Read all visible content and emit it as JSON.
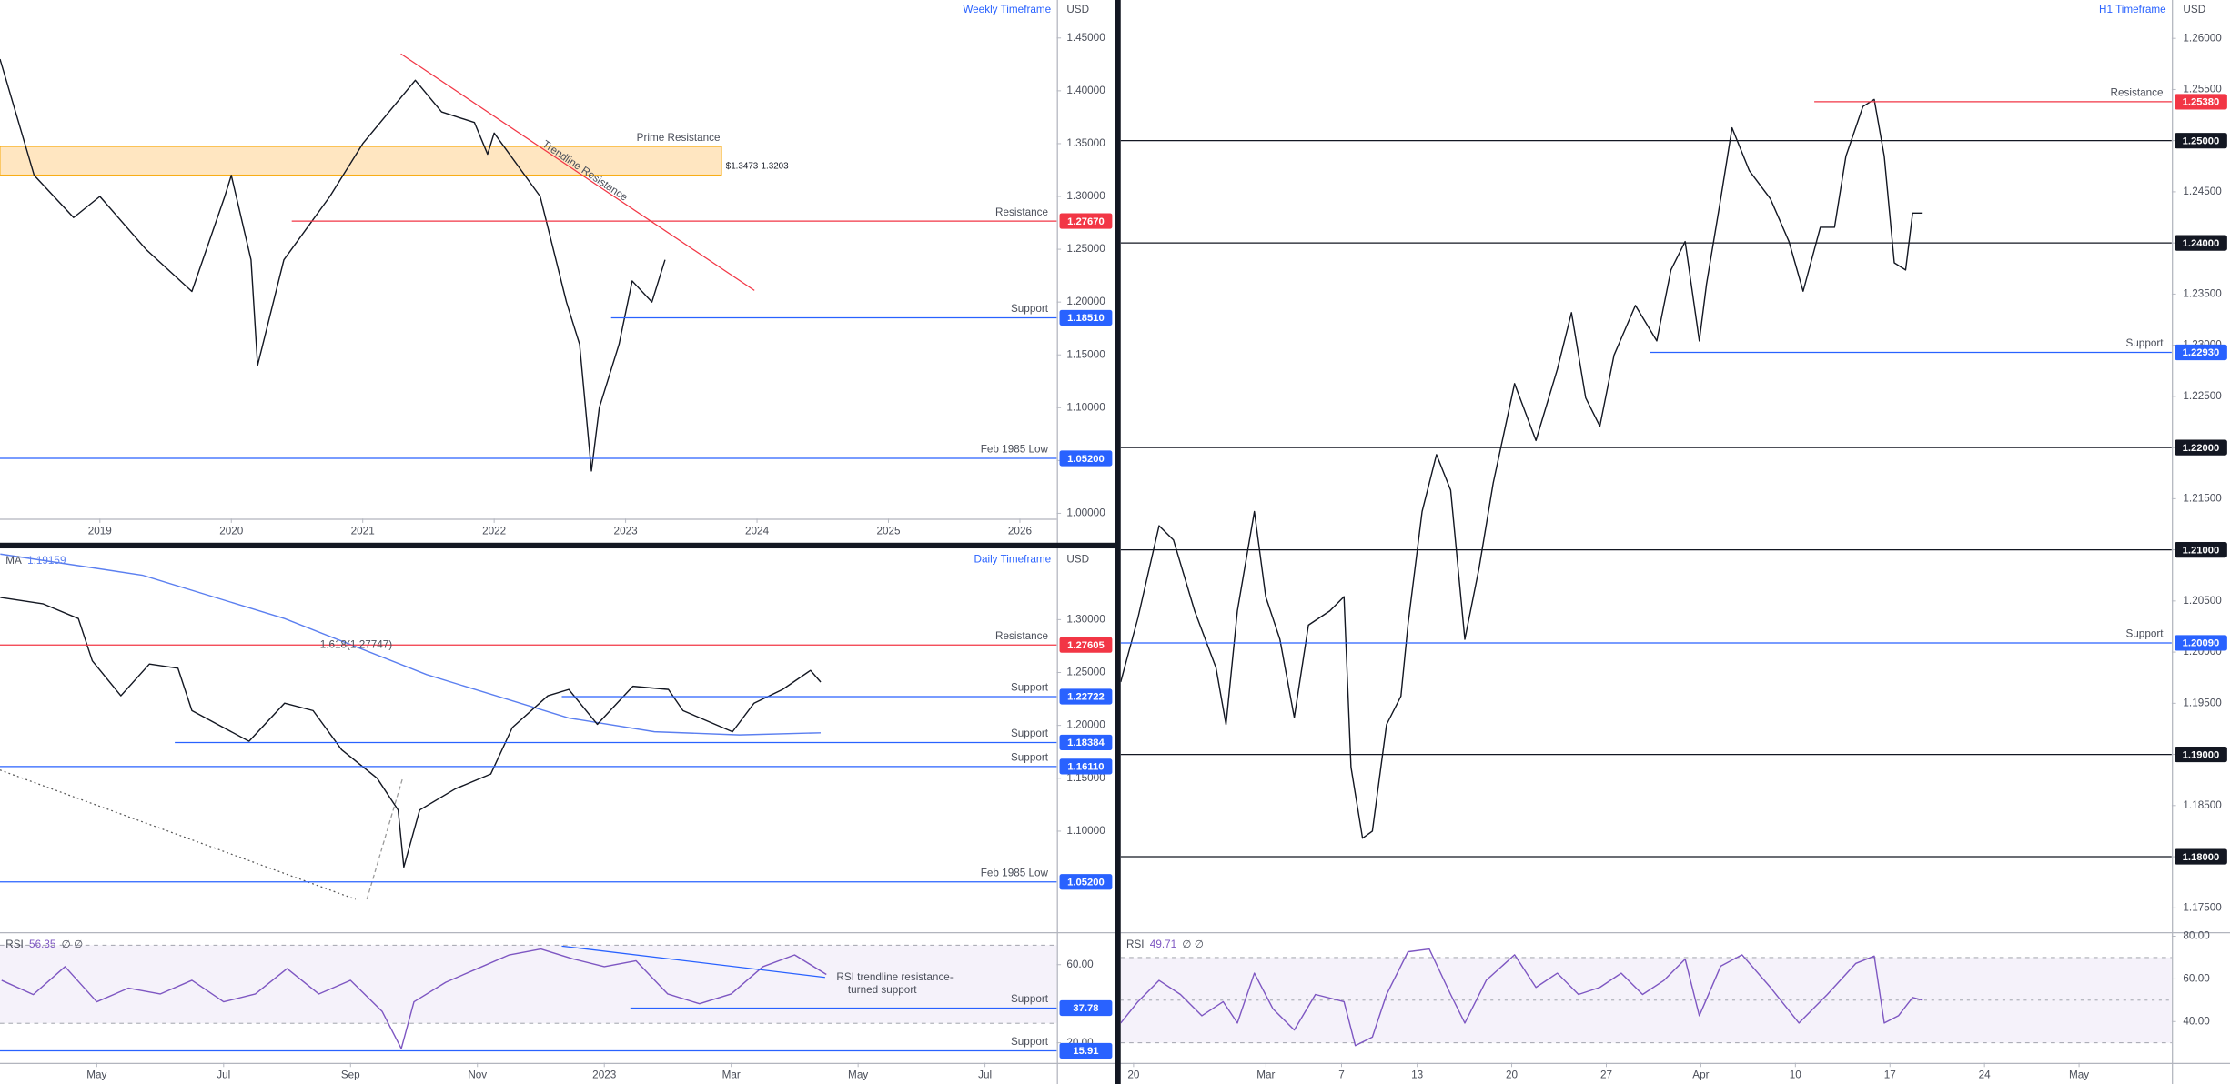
{
  "chart_data": [
    {
      "type": "line",
      "title": "Weekly Timeframe",
      "currency": "USD",
      "color": "#131722",
      "xlim": [
        2018.24,
        2026.28
      ],
      "xticks": [
        2019,
        2020,
        2021,
        2022,
        2023,
        2024,
        2025,
        2026
      ],
      "ylim": [
        0.995,
        1.486
      ],
      "yticks": [
        {
          "value": 1.0,
          "label": "1.00000"
        },
        {
          "value": 1.05,
          "label": "1.05000"
        },
        {
          "value": 1.1,
          "label": "1.10000"
        },
        {
          "value": 1.15,
          "label": "1.15000"
        },
        {
          "value": 1.2,
          "label": "1.20000"
        },
        {
          "value": 1.25,
          "label": "1.25000"
        },
        {
          "value": 1.3,
          "label": "1.30000"
        },
        {
          "value": 1.35,
          "label": "1.35000"
        },
        {
          "value": 1.4,
          "label": "1.40000"
        },
        {
          "value": 1.45,
          "label": "1.45000"
        }
      ],
      "x": [
        2018.24,
        2018.5,
        2018.8,
        2019.0,
        2019.35,
        2019.7,
        2019.95,
        2020.0,
        2020.15,
        2020.2,
        2020.4,
        2020.75,
        2021.0,
        2021.2,
        2021.4,
        2021.6,
        2021.85,
        2021.95,
        2022.0,
        2022.35,
        2022.45,
        2022.55,
        2022.65,
        2022.74,
        2022.8,
        2022.95,
        2023.05,
        2023.2,
        2023.3
      ],
      "values": [
        1.43,
        1.32,
        1.28,
        1.3,
        1.25,
        1.21,
        1.3,
        1.32,
        1.24,
        1.14,
        1.24,
        1.3,
        1.35,
        1.38,
        1.41,
        1.38,
        1.37,
        1.34,
        1.36,
        1.3,
        1.25,
        1.2,
        1.16,
        1.04,
        1.1,
        1.16,
        1.22,
        1.2,
        1.24
      ],
      "zones": [
        {
          "label": "Prime Resistance",
          "range_label": "$1.3473-1.3203",
          "values": [
            1.3473,
            1.3203
          ],
          "x": [
            2018.24,
            2023.73
          ],
          "color": "#f7a600"
        }
      ],
      "trendlines": [
        {
          "label": "Trendline Resistance",
          "x": [
            2021.29,
            2023.98
          ],
          "values": [
            1.435,
            1.211
          ],
          "color": "#f23645"
        }
      ],
      "levels": [
        {
          "label": "Resistance",
          "value": 1.2767,
          "value_label": "1.27670",
          "color": "#f23645",
          "x_start": 2020.46
        },
        {
          "label": "Support",
          "value": 1.1851,
          "value_label": "1.18510",
          "color": "#2962ff",
          "x_start": 2022.89
        },
        {
          "label": "Feb 1985 Low",
          "value": 1.052,
          "value_label": "1.05200",
          "color": "#2962ff"
        }
      ]
    },
    {
      "type": "line",
      "title": "Daily Timeframe",
      "currency": "USD",
      "color": "#131722",
      "xlim": [
        2.475,
        19.13
      ],
      "ylim": [
        1.006,
        1.366
      ],
      "yticks": [
        {
          "value": 1.1,
          "label": "1.10000"
        },
        {
          "value": 1.15,
          "label": "1.15000"
        },
        {
          "value": 1.2,
          "label": "1.20000"
        },
        {
          "value": 1.25,
          "label": "1.25000"
        },
        {
          "value": 1.3,
          "label": "1.30000"
        }
      ],
      "x": [
        2.48,
        3.15,
        3.71,
        3.93,
        4.38,
        4.83,
        5.28,
        5.5,
        6.4,
        6.96,
        7.41,
        7.86,
        8.42,
        8.75,
        8.84,
        9.09,
        9.65,
        10.21,
        10.55,
        11.11,
        11.44,
        11.89,
        12.45,
        13.01,
        13.24,
        14.02,
        14.36,
        14.81,
        15.25,
        15.41
      ],
      "values": [
        1.321,
        1.315,
        1.301,
        1.261,
        1.228,
        1.258,
        1.254,
        1.214,
        1.185,
        1.221,
        1.214,
        1.177,
        1.15,
        1.12,
        1.066,
        1.12,
        1.14,
        1.154,
        1.198,
        1.228,
        1.234,
        1.201,
        1.237,
        1.234,
        1.214,
        1.194,
        1.221,
        1.234,
        1.252,
        1.241
      ],
      "overlays": [
        {
          "name": "MA",
          "value": 1.19159,
          "value_label": "1.19159",
          "color": "#5b7ff0",
          "x": [
            2.48,
            4.72,
            6.96,
            9.2,
            11.44,
            12.79,
            14.13,
            15.41
          ],
          "values": [
            1.362,
            1.342,
            1.301,
            1.248,
            1.207,
            1.194,
            1.191,
            1.193
          ]
        }
      ],
      "levels": [
        {
          "label": "Resistance",
          "value": 1.27605,
          "value_label": "1.27605",
          "color": "#f23645",
          "annotation": "1.618(1.27747)"
        },
        {
          "label": "Support",
          "value": 1.22722,
          "value_label": "1.22722",
          "color": "#2962ff",
          "x_start": 11.33
        },
        {
          "label": "Support",
          "value": 1.18384,
          "value_label": "1.18384",
          "color": "#2962ff",
          "x_start": 5.23
        },
        {
          "label": "Support",
          "value": 1.1611,
          "value_label": "1.16110",
          "color": "#2962ff"
        },
        {
          "label": "Feb 1985 Low",
          "value": 1.052,
          "value_label": "1.05200",
          "color": "#2962ff"
        }
      ]
    },
    {
      "type": "line",
      "color": "#7e57c2",
      "indicator": {
        "name": "RSI",
        "value": 56.35,
        "params": "∅ ∅"
      },
      "xlim": [
        2.475,
        19.13
      ],
      "ylim": [
        9.8,
        76
      ],
      "xticks": [
        {
          "value": 4,
          "label": "May"
        },
        {
          "value": 6,
          "label": "Jul"
        },
        {
          "value": 8,
          "label": "Sep"
        },
        {
          "value": 10,
          "label": "Nov"
        },
        {
          "value": 12,
          "label": "2023"
        },
        {
          "value": 14,
          "label": "Mar"
        },
        {
          "value": 16,
          "label": "May"
        },
        {
          "value": 18,
          "label": "Jul"
        }
      ],
      "yticks": [
        {
          "value": 20,
          "label": "20.00"
        },
        {
          "value": 60,
          "label": "60.00"
        }
      ],
      "bands": [
        30,
        70
      ],
      "x": [
        2.5,
        3,
        3.5,
        4,
        4.5,
        5,
        5.5,
        6,
        6.5,
        7,
        7.5,
        8,
        8.5,
        8.8,
        9,
        9.5,
        10,
        10.5,
        11,
        11.5,
        12,
        12.5,
        13,
        13.5,
        14,
        14.5,
        15,
        15.5
      ],
      "values": [
        52,
        44.7,
        59,
        41,
        48,
        45,
        52,
        41,
        45,
        58,
        45,
        52,
        36,
        17,
        41,
        51,
        58,
        65,
        68,
        63,
        59,
        62,
        45,
        40,
        45,
        59,
        65,
        55
      ],
      "trendlines": [
        {
          "label_lines": [
            "RSI trendline resistance-",
            "turned support"
          ],
          "x": [
            11.33,
            15.48
          ],
          "values": [
            69.5,
            53.5
          ],
          "color": "#2962ff"
        }
      ],
      "levels": [
        {
          "label": "Support",
          "value": 37.78,
          "value_label": "37.78",
          "color": "#2962ff",
          "x_start": 12.41
        },
        {
          "label": "Support",
          "value": 15.91,
          "value_label": "15.91",
          "color": "#2962ff"
        }
      ]
    },
    {
      "type": "line",
      "title": "H1 Timeframe",
      "currency": "USD",
      "color": "#131722",
      "xlim": [
        -0.68,
        54.9
      ],
      "ylim": [
        1.17278,
        1.26375
      ],
      "yticks": [
        {
          "value": 1.175,
          "label": "1.17500"
        },
        {
          "value": 1.18,
          "label": "1.18000"
        },
        {
          "value": 1.185,
          "label": "1.18500"
        },
        {
          "value": 1.19,
          "label": "1.19000"
        },
        {
          "value": 1.195,
          "label": "1.19500"
        },
        {
          "value": 1.2,
          "label": "1.20000"
        },
        {
          "value": 1.205,
          "label": "1.20500"
        },
        {
          "value": 1.21,
          "label": "1.21000"
        },
        {
          "value": 1.215,
          "label": "1.21500"
        },
        {
          "value": 1.22,
          "label": "1.22000"
        },
        {
          "value": 1.225,
          "label": "1.22500"
        },
        {
          "value": 1.23,
          "label": "1.23000"
        },
        {
          "value": 1.235,
          "label": "1.23500"
        },
        {
          "value": 1.24,
          "label": "1.24000"
        },
        {
          "value": 1.245,
          "label": "1.24500"
        },
        {
          "value": 1.25,
          "label": "1.25000"
        },
        {
          "value": 1.255,
          "label": "1.25500"
        },
        {
          "value": 1.26,
          "label": "1.26000"
        }
      ],
      "x": [
        -0.68,
        0.23,
        1.35,
        2.11,
        3.23,
        4.36,
        4.89,
        5.49,
        6.39,
        6.99,
        7.74,
        8.5,
        9.25,
        10.38,
        11.13,
        11.5,
        12.11,
        12.63,
        13.38,
        14.14,
        14.51,
        15.26,
        16.02,
        16.77,
        17.52,
        18.27,
        19.02,
        20.15,
        21.28,
        22.41,
        23.16,
        23.91,
        24.66,
        25.41,
        26.54,
        27.67,
        28.42,
        29.17,
        29.92,
        30.3,
        31.05,
        31.65,
        32.56,
        33.68,
        34.66,
        35.41,
        36.32,
        37.07,
        37.67,
        38.57,
        39.17,
        39.7,
        40.23,
        40.83,
        41.2,
        41.73
      ],
      "values": [
        1.19708,
        1.20333,
        1.21236,
        1.21097,
        1.20403,
        1.19847,
        1.19292,
        1.20403,
        1.21375,
        1.20542,
        1.20125,
        1.19361,
        1.20264,
        1.20403,
        1.20542,
        1.18875,
        1.18181,
        1.1825,
        1.19292,
        1.19569,
        1.20264,
        1.21375,
        1.21931,
        1.21583,
        1.20125,
        1.20819,
        1.21653,
        1.22625,
        1.22069,
        1.22764,
        1.23319,
        1.22486,
        1.22208,
        1.22903,
        1.23389,
        1.23042,
        1.23736,
        1.24014,
        1.23042,
        1.23597,
        1.24431,
        1.25125,
        1.24708,
        1.24431,
        1.24014,
        1.23528,
        1.24153,
        1.24153,
        1.24847,
        1.25333,
        1.25403,
        1.24847,
        1.23806,
        1.23736,
        1.24292,
        1.24292
      ],
      "levels": [
        {
          "label": "Resistance",
          "value": 1.2538,
          "value_label": "1.25380",
          "color": "#f23645",
          "x_start": 36.0
        },
        {
          "value": 1.25,
          "value_label": "1.25000",
          "color": "#131722"
        },
        {
          "value": 1.24,
          "value_label": "1.24000",
          "color": "#131722"
        },
        {
          "label": "Support",
          "value": 1.2293,
          "value_label": "1.22930",
          "color": "#2962ff",
          "x_start": 27.3
        },
        {
          "value": 1.22,
          "value_label": "1.22000",
          "color": "#131722"
        },
        {
          "value": 1.21,
          "value_label": "1.21000",
          "color": "#131722"
        },
        {
          "label": "Support",
          "value": 1.2009,
          "value_label": "1.20090",
          "color": "#2962ff"
        },
        {
          "value": 1.19,
          "value_label": "1.19000",
          "color": "#131722"
        },
        {
          "value": 1.18,
          "value_label": "1.18000",
          "color": "#131722"
        }
      ]
    },
    {
      "type": "line",
      "color": "#7e57c2",
      "indicator": {
        "name": "RSI",
        "value": 49.71,
        "params": "∅ ∅"
      },
      "xlim": [
        -0.68,
        54.9
      ],
      "ylim": [
        20.67,
        81.33
      ],
      "xticks": [
        {
          "value": 0,
          "label": "20"
        },
        {
          "value": 7,
          "label": "Mar"
        },
        {
          "value": 11,
          "label": "7"
        },
        {
          "value": 15,
          "label": "13"
        },
        {
          "value": 20,
          "label": "20"
        },
        {
          "value": 25,
          "label": "27"
        },
        {
          "value": 30,
          "label": "Apr"
        },
        {
          "value": 35,
          "label": "10"
        },
        {
          "value": 40,
          "label": "17"
        },
        {
          "value": 45,
          "label": "24"
        },
        {
          "value": 50,
          "label": "May"
        }
      ],
      "yticks": [
        {
          "value": 40,
          "label": "40.00"
        },
        {
          "value": 60,
          "label": "60.00"
        },
        {
          "value": 80,
          "label": "80.00"
        }
      ],
      "bands": [
        30,
        70
      ],
      "midline": 50,
      "x": [
        -0.68,
        0.23,
        1.35,
        2.48,
        3.61,
        4.74,
        5.49,
        6.39,
        7.37,
        8.5,
        9.62,
        11.13,
        11.73,
        12.63,
        13.38,
        14.51,
        15.64,
        16.77,
        17.52,
        18.65,
        20.15,
        21.28,
        22.41,
        23.53,
        24.66,
        25.79,
        26.92,
        28.05,
        29.17,
        29.92,
        31.05,
        32.18,
        33.68,
        35.19,
        36.69,
        38.2,
        39.17,
        39.7,
        40.45,
        41.2,
        41.73
      ],
      "values": [
        39.3,
        49.3,
        59.3,
        52.7,
        42.7,
        49.3,
        39.3,
        62.7,
        46,
        36,
        52.7,
        49.3,
        28.7,
        32.7,
        52.7,
        72.7,
        74,
        52.7,
        39.3,
        59.3,
        71.3,
        56,
        62.7,
        52.7,
        56,
        62.7,
        52.7,
        59.3,
        69.3,
        42.7,
        66,
        71.3,
        56,
        39.3,
        52.7,
        67.3,
        70.7,
        39.3,
        42.7,
        51.3,
        50
      ]
    }
  ]
}
